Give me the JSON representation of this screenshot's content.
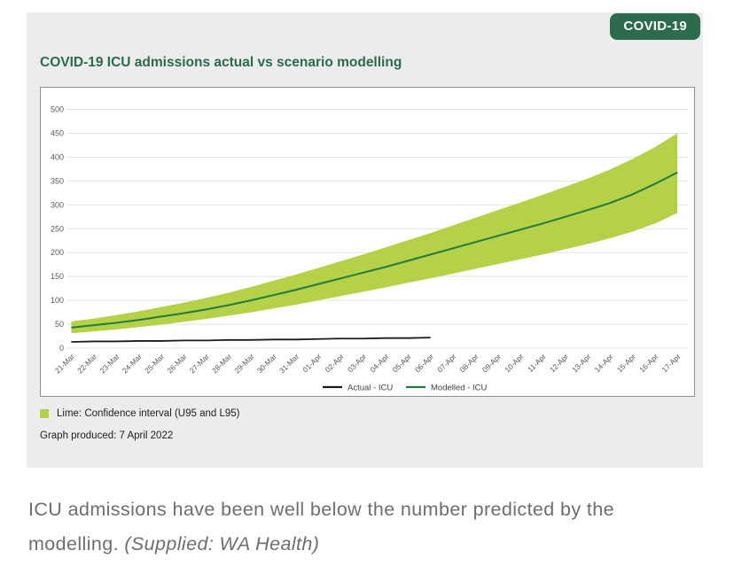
{
  "badge": {
    "label": "COVID-19",
    "bg_color": "#2d6b4d",
    "text_color": "#ffffff"
  },
  "title": {
    "text": "COVID-19 ICU admissions actual vs scenario modelling",
    "color": "#2a6b4a"
  },
  "notes": {
    "confidence_note": "Lime: Confidence interval (U95 and L95)",
    "produced": "Graph produced: 7 April 2022",
    "lime_color": "#b4d147"
  },
  "caption": {
    "text": "ICU admissions have been well below the number predicted by the modelling. ",
    "attribution": "(Supplied: WA Health)"
  },
  "chart_data": {
    "type": "line",
    "title": "COVID-19 ICU admissions actual vs scenario modelling",
    "xlabel": "",
    "ylabel": "",
    "ylim": [
      0,
      500
    ],
    "yticks": [
      0,
      50,
      100,
      150,
      200,
      250,
      300,
      350,
      400,
      450,
      500
    ],
    "grid": true,
    "legend_position": "bottom",
    "x": [
      "21-Mar",
      "22-Mar",
      "23-Mar",
      "24-Mar",
      "25-Mar",
      "26-Mar",
      "27-Mar",
      "28-Mar",
      "29-Mar",
      "30-Mar",
      "31-Mar",
      "01-Apr",
      "02-Apr",
      "03-Apr",
      "04-Apr",
      "05-Apr",
      "06-Apr",
      "07-Apr",
      "08-Apr",
      "09-Apr",
      "10-Apr",
      "11-Apr",
      "12-Apr",
      "13-Apr",
      "14-Apr",
      "15-Apr",
      "16-Apr",
      "17-Apr"
    ],
    "series": [
      {
        "name": "Actual - ICU",
        "color": "#1b1b1b",
        "values": [
          13,
          14,
          14,
          15,
          15,
          16,
          16,
          17,
          17,
          18,
          18,
          19,
          20,
          20,
          21,
          21,
          22
        ]
      },
      {
        "name": "Modelled - ICU",
        "color": "#217a3f",
        "values": [
          43,
          48,
          53,
          59,
          66,
          73,
          81,
          90,
          100,
          111,
          122,
          134,
          146,
          158,
          170,
          183,
          196,
          209,
          222,
          235,
          248,
          261,
          275,
          289,
          304,
          322,
          344,
          368
        ]
      }
    ],
    "band": {
      "name": "Confidence interval (U95 and L95)",
      "color": "#b4d147",
      "upper": [
        56,
        62,
        69,
        77,
        86,
        95,
        105,
        116,
        128,
        141,
        154,
        168,
        182,
        196,
        211,
        226,
        241,
        257,
        273,
        289,
        305,
        321,
        338,
        355,
        374,
        396,
        421,
        450
      ],
      "lower": [
        31,
        35,
        39,
        44,
        49,
        55,
        61,
        68,
        75,
        83,
        91,
        100,
        109,
        118,
        127,
        137,
        146,
        156,
        166,
        176,
        186,
        196,
        207,
        218,
        230,
        244,
        261,
        283
      ]
    }
  }
}
